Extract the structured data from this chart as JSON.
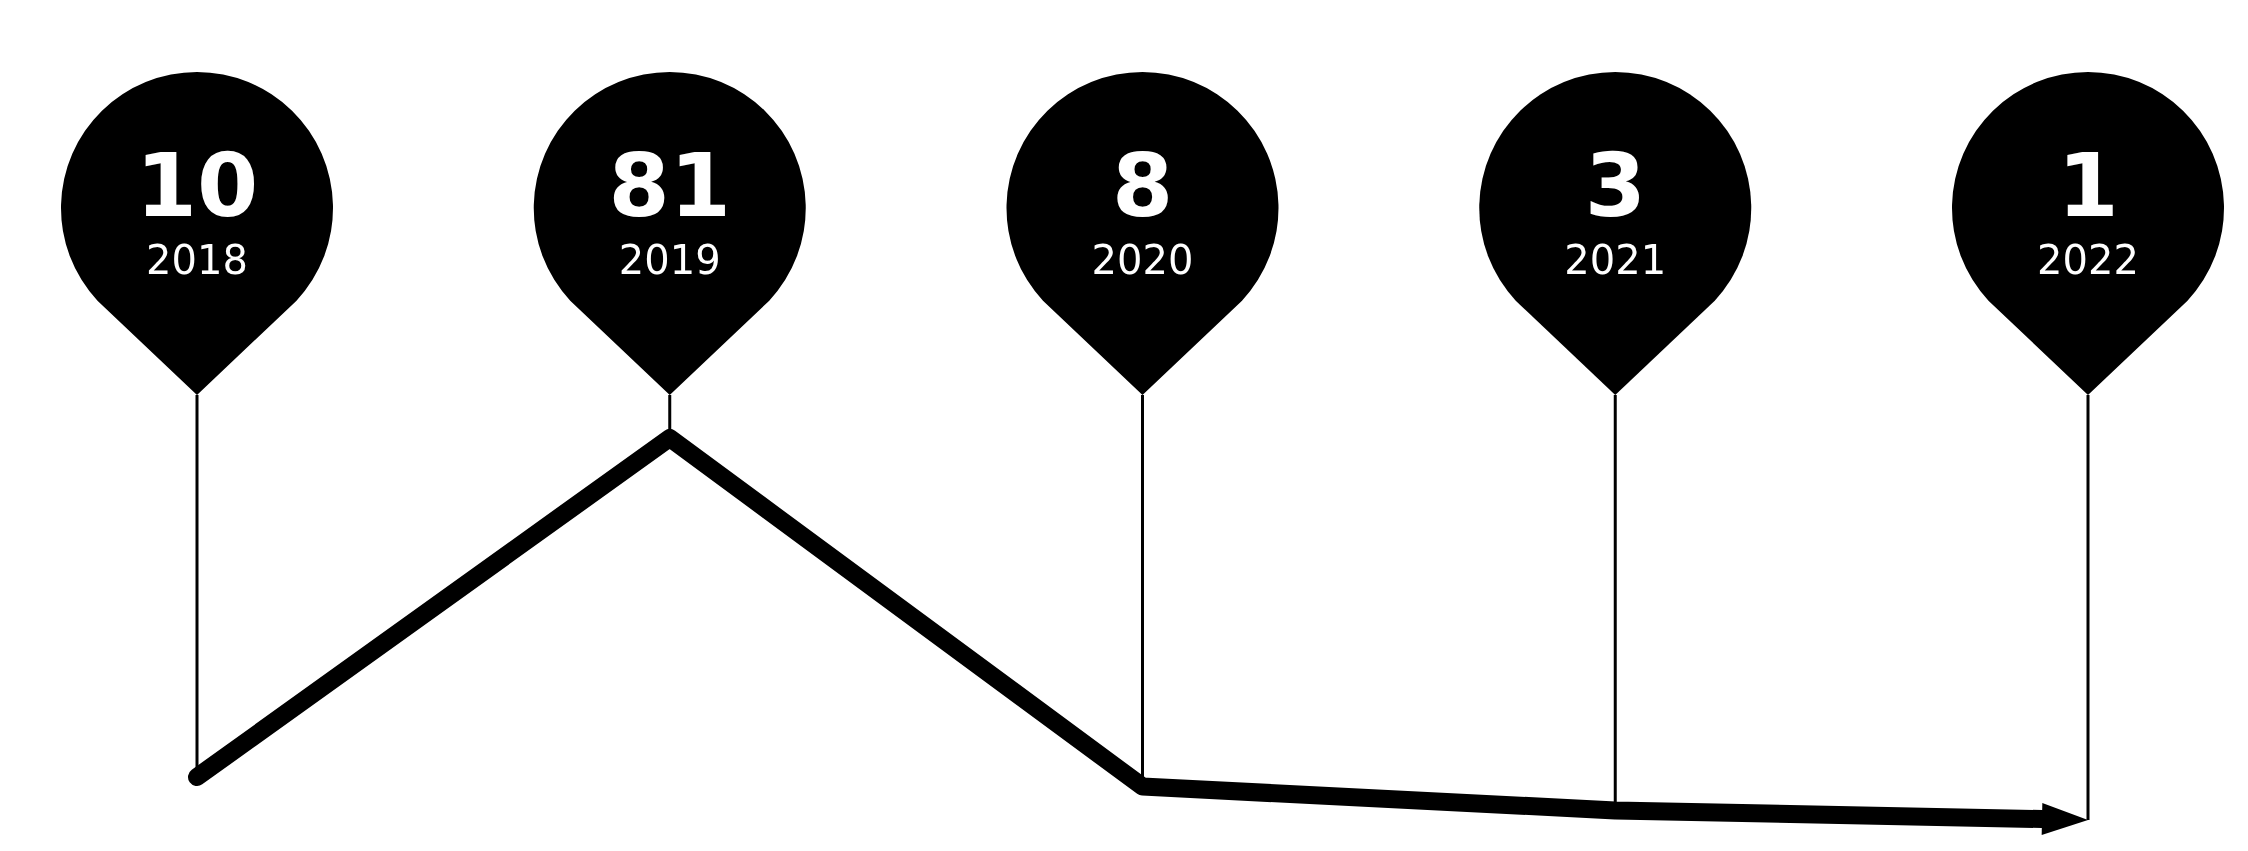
{
  "chart_data": {
    "type": "line",
    "categories": [
      "2018",
      "2019",
      "2020",
      "2021",
      "2022"
    ],
    "values": [
      10,
      81,
      8,
      3,
      1
    ],
    "color": "#000000",
    "data_labels": true,
    "grid": "x"
  }
}
